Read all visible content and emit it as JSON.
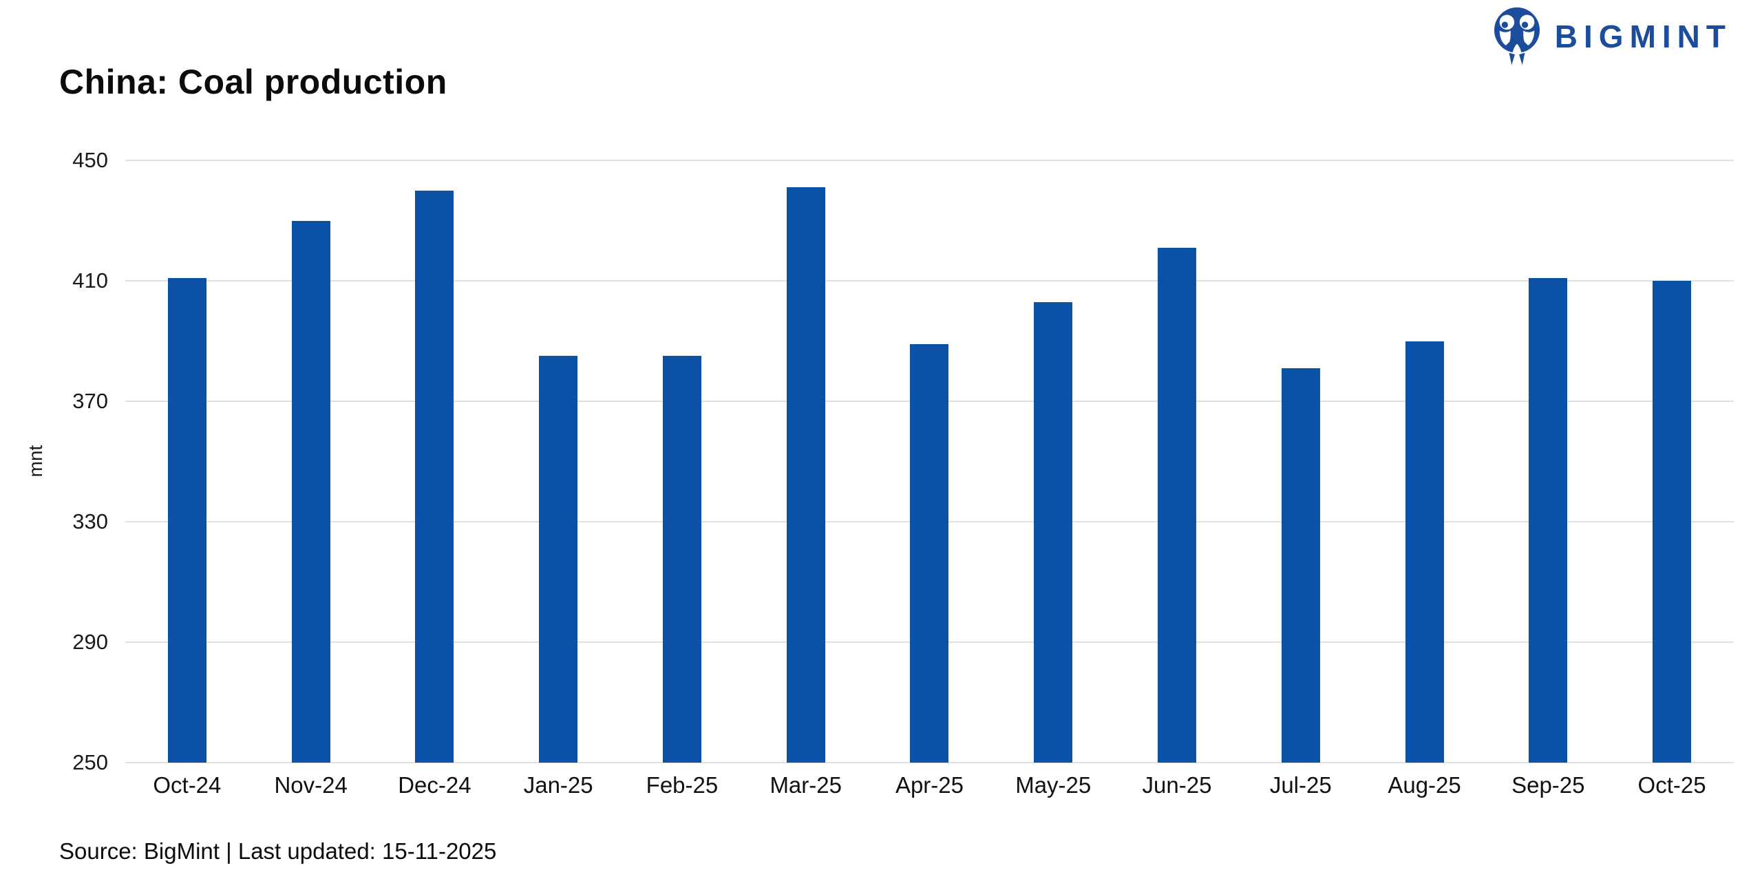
{
  "header": {
    "title": "China: Coal production",
    "brand": {
      "name": "BIGMINT",
      "logo_icon": "bigmint-owl-icon",
      "color": "#1c4d9c"
    }
  },
  "chart_data": {
    "type": "bar",
    "title": "China: Coal production",
    "xlabel": "",
    "ylabel": "mnt",
    "ylim": [
      250,
      450
    ],
    "yticks": [
      450,
      410,
      370,
      330,
      290,
      250
    ],
    "grid": "horizontal",
    "legend": "none",
    "bar_color": "#0b51a5",
    "categories": [
      "Oct-24",
      "Nov-24",
      "Dec-24",
      "Jan-25",
      "Feb-25",
      "Mar-25",
      "Apr-25",
      "May-25",
      "Jun-25",
      "Jul-25",
      "Aug-25",
      "Sep-25",
      "Oct-25"
    ],
    "values": [
      411,
      430,
      440,
      385,
      385,
      441,
      389,
      403,
      421,
      381,
      390,
      411,
      410
    ]
  },
  "footer": {
    "source_line": "Source: BigMint | Last updated: 15-11-2025"
  }
}
